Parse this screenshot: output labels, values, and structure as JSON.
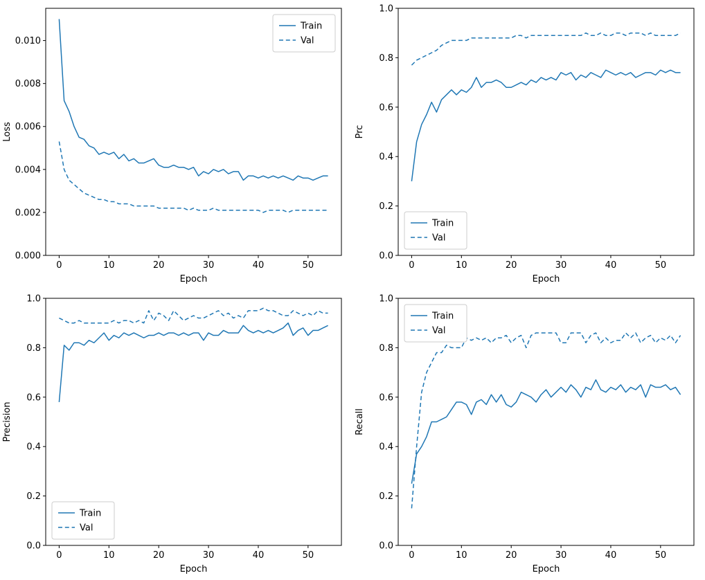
{
  "colors": {
    "line": "#1f77b4",
    "axis": "#000000",
    "text": "#000000",
    "legend_border": "#cccccc",
    "background": "#ffffff"
  },
  "chart_data": [
    {
      "type": "line",
      "id": "loss",
      "title": "",
      "xlabel": "Epoch",
      "ylabel": "Loss",
      "xlim": [
        -2.7,
        56.7
      ],
      "ylim": [
        0,
        0.0115
      ],
      "xticks": [
        0,
        10,
        20,
        30,
        40,
        50
      ],
      "xtick_labels": [
        "0",
        "10",
        "20",
        "30",
        "40",
        "50"
      ],
      "yticks": [
        0,
        0.002,
        0.004,
        0.006,
        0.008,
        0.01
      ],
      "ytick_labels": [
        "0.000",
        "0.002",
        "0.004",
        "0.006",
        "0.008",
        "0.010"
      ],
      "grid": false,
      "legend": {
        "position": "top-right",
        "entries": [
          "Train",
          "Val"
        ]
      },
      "series": [
        {
          "name": "Train",
          "dash": false,
          "values": [
            0.011,
            0.0072,
            0.0067,
            0.006,
            0.0055,
            0.0054,
            0.0051,
            0.005,
            0.0047,
            0.0048,
            0.0047,
            0.0048,
            0.0045,
            0.0047,
            0.0044,
            0.0045,
            0.0043,
            0.0043,
            0.0044,
            0.0045,
            0.0042,
            0.0041,
            0.0041,
            0.0042,
            0.0041,
            0.0041,
            0.004,
            0.0041,
            0.0037,
            0.0039,
            0.0038,
            0.004,
            0.0039,
            0.004,
            0.0038,
            0.0039,
            0.0039,
            0.0035,
            0.0037,
            0.0037,
            0.0036,
            0.0037,
            0.0036,
            0.0037,
            0.0036,
            0.0037,
            0.0036,
            0.0035,
            0.0037,
            0.0036,
            0.0036,
            0.0035,
            0.0036,
            0.0037,
            0.0037
          ]
        },
        {
          "name": "Val",
          "dash": true,
          "values": [
            0.0053,
            0.004,
            0.0035,
            0.0033,
            0.0031,
            0.0029,
            0.0028,
            0.0027,
            0.0026,
            0.0026,
            0.0025,
            0.0025,
            0.0024,
            0.0024,
            0.0024,
            0.0023,
            0.0023,
            0.0023,
            0.0023,
            0.0023,
            0.0022,
            0.0022,
            0.0022,
            0.0022,
            0.0022,
            0.0022,
            0.0021,
            0.0022,
            0.0021,
            0.0021,
            0.0021,
            0.0022,
            0.0021,
            0.0021,
            0.0021,
            0.0021,
            0.0021,
            0.0021,
            0.0021,
            0.0021,
            0.0021,
            0.002,
            0.0021,
            0.0021,
            0.0021,
            0.0021,
            0.002,
            0.0021,
            0.0021,
            0.0021,
            0.0021,
            0.0021,
            0.0021,
            0.0021,
            0.0021
          ]
        }
      ]
    },
    {
      "type": "line",
      "id": "prc",
      "title": "",
      "xlabel": "Epoch",
      "ylabel": "Prc",
      "xlim": [
        -2.7,
        56.7
      ],
      "ylim": [
        0,
        1.0
      ],
      "xticks": [
        0,
        10,
        20,
        30,
        40,
        50
      ],
      "xtick_labels": [
        "0",
        "10",
        "20",
        "30",
        "40",
        "50"
      ],
      "yticks": [
        0,
        0.2,
        0.4,
        0.6,
        0.8,
        1.0
      ],
      "ytick_labels": [
        "0.0",
        "0.2",
        "0.4",
        "0.6",
        "0.8",
        "1.0"
      ],
      "grid": false,
      "legend": {
        "position": "bottom-left",
        "entries": [
          "Train",
          "Val"
        ]
      },
      "series": [
        {
          "name": "Train",
          "dash": false,
          "values": [
            0.3,
            0.46,
            0.53,
            0.57,
            0.62,
            0.58,
            0.63,
            0.65,
            0.67,
            0.65,
            0.67,
            0.66,
            0.68,
            0.72,
            0.68,
            0.7,
            0.7,
            0.71,
            0.7,
            0.68,
            0.68,
            0.69,
            0.7,
            0.69,
            0.71,
            0.7,
            0.72,
            0.71,
            0.72,
            0.71,
            0.74,
            0.73,
            0.74,
            0.71,
            0.73,
            0.72,
            0.74,
            0.73,
            0.72,
            0.75,
            0.74,
            0.73,
            0.74,
            0.73,
            0.74,
            0.72,
            0.73,
            0.74,
            0.74,
            0.73,
            0.75,
            0.74,
            0.75,
            0.74,
            0.74
          ]
        },
        {
          "name": "Val",
          "dash": true,
          "values": [
            0.77,
            0.79,
            0.8,
            0.81,
            0.82,
            0.83,
            0.85,
            0.86,
            0.87,
            0.87,
            0.87,
            0.87,
            0.88,
            0.88,
            0.88,
            0.88,
            0.88,
            0.88,
            0.88,
            0.88,
            0.88,
            0.89,
            0.89,
            0.88,
            0.89,
            0.89,
            0.89,
            0.89,
            0.89,
            0.89,
            0.89,
            0.89,
            0.89,
            0.89,
            0.89,
            0.9,
            0.89,
            0.89,
            0.9,
            0.89,
            0.89,
            0.9,
            0.9,
            0.89,
            0.9,
            0.9,
            0.9,
            0.89,
            0.9,
            0.89,
            0.89,
            0.89,
            0.89,
            0.89,
            0.9
          ]
        }
      ]
    },
    {
      "type": "line",
      "id": "precision",
      "title": "",
      "xlabel": "Epoch",
      "ylabel": "Precision",
      "xlim": [
        -2.7,
        56.7
      ],
      "ylim": [
        0,
        1.0
      ],
      "xticks": [
        0,
        10,
        20,
        30,
        40,
        50
      ],
      "xtick_labels": [
        "0",
        "10",
        "20",
        "30",
        "40",
        "50"
      ],
      "yticks": [
        0,
        0.2,
        0.4,
        0.6,
        0.8,
        1.0
      ],
      "ytick_labels": [
        "0.0",
        "0.2",
        "0.4",
        "0.6",
        "0.8",
        "1.0"
      ],
      "grid": false,
      "legend": {
        "position": "bottom-left",
        "entries": [
          "Train",
          "Val"
        ]
      },
      "series": [
        {
          "name": "Train",
          "dash": false,
          "values": [
            0.58,
            0.81,
            0.79,
            0.82,
            0.82,
            0.81,
            0.83,
            0.82,
            0.84,
            0.86,
            0.83,
            0.85,
            0.84,
            0.86,
            0.85,
            0.86,
            0.85,
            0.84,
            0.85,
            0.85,
            0.86,
            0.85,
            0.86,
            0.86,
            0.85,
            0.86,
            0.85,
            0.86,
            0.86,
            0.83,
            0.86,
            0.85,
            0.85,
            0.87,
            0.86,
            0.86,
            0.86,
            0.89,
            0.87,
            0.86,
            0.87,
            0.86,
            0.87,
            0.86,
            0.87,
            0.88,
            0.9,
            0.85,
            0.87,
            0.88,
            0.85,
            0.87,
            0.87,
            0.88,
            0.89
          ]
        },
        {
          "name": "Val",
          "dash": true,
          "values": [
            0.92,
            0.91,
            0.9,
            0.9,
            0.91,
            0.9,
            0.9,
            0.9,
            0.9,
            0.9,
            0.9,
            0.91,
            0.9,
            0.91,
            0.91,
            0.9,
            0.91,
            0.9,
            0.95,
            0.91,
            0.94,
            0.93,
            0.91,
            0.95,
            0.93,
            0.91,
            0.92,
            0.93,
            0.92,
            0.92,
            0.93,
            0.94,
            0.95,
            0.93,
            0.94,
            0.92,
            0.93,
            0.92,
            0.95,
            0.95,
            0.95,
            0.96,
            0.95,
            0.95,
            0.94,
            0.93,
            0.93,
            0.95,
            0.94,
            0.93,
            0.94,
            0.93,
            0.95,
            0.94,
            0.94
          ]
        }
      ]
    },
    {
      "type": "line",
      "id": "recall",
      "title": "",
      "xlabel": "Epoch",
      "ylabel": "Recall",
      "xlim": [
        -2.7,
        56.7
      ],
      "ylim": [
        0,
        1.0
      ],
      "xticks": [
        0,
        10,
        20,
        30,
        40,
        50
      ],
      "xtick_labels": [
        "0",
        "10",
        "20",
        "30",
        "40",
        "50"
      ],
      "yticks": [
        0,
        0.2,
        0.4,
        0.6,
        0.8,
        1.0
      ],
      "ytick_labels": [
        "0.0",
        "0.2",
        "0.4",
        "0.6",
        "0.8",
        "1.0"
      ],
      "grid": false,
      "legend": {
        "position": "top-left",
        "entries": [
          "Train",
          "Val"
        ]
      },
      "series": [
        {
          "name": "Train",
          "dash": false,
          "values": [
            0.25,
            0.37,
            0.4,
            0.44,
            0.5,
            0.5,
            0.51,
            0.52,
            0.55,
            0.58,
            0.58,
            0.57,
            0.53,
            0.58,
            0.59,
            0.57,
            0.61,
            0.58,
            0.61,
            0.57,
            0.56,
            0.58,
            0.62,
            0.61,
            0.6,
            0.58,
            0.61,
            0.63,
            0.6,
            0.62,
            0.64,
            0.62,
            0.65,
            0.63,
            0.6,
            0.64,
            0.63,
            0.67,
            0.63,
            0.62,
            0.64,
            0.63,
            0.65,
            0.62,
            0.64,
            0.63,
            0.65,
            0.6,
            0.65,
            0.64,
            0.64,
            0.65,
            0.63,
            0.64,
            0.61
          ]
        },
        {
          "name": "Val",
          "dash": true,
          "values": [
            0.15,
            0.4,
            0.62,
            0.7,
            0.74,
            0.78,
            0.78,
            0.81,
            0.8,
            0.8,
            0.8,
            0.84,
            0.83,
            0.84,
            0.83,
            0.84,
            0.82,
            0.84,
            0.84,
            0.85,
            0.82,
            0.84,
            0.85,
            0.8,
            0.85,
            0.86,
            0.86,
            0.86,
            0.86,
            0.86,
            0.82,
            0.82,
            0.86,
            0.86,
            0.86,
            0.82,
            0.85,
            0.86,
            0.82,
            0.84,
            0.82,
            0.83,
            0.83,
            0.86,
            0.84,
            0.86,
            0.82,
            0.84,
            0.85,
            0.82,
            0.84,
            0.83,
            0.85,
            0.82,
            0.85
          ]
        }
      ]
    }
  ]
}
